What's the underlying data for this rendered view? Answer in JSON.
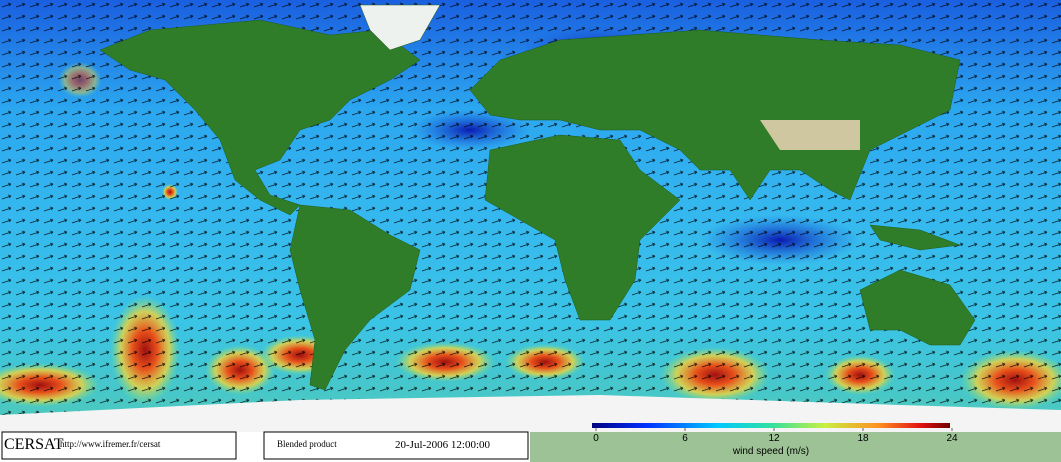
{
  "footer": {
    "logo": "CERSAT",
    "url": "http://www.ifremer.fr/cersat",
    "product": "Blended product",
    "date": "20-Jul-2006 12:00:00"
  },
  "colorbar": {
    "label": "wind speed (m/s)",
    "range": [
      0,
      24
    ],
    "ticks": [
      0,
      6,
      12,
      18,
      24
    ]
  }
}
